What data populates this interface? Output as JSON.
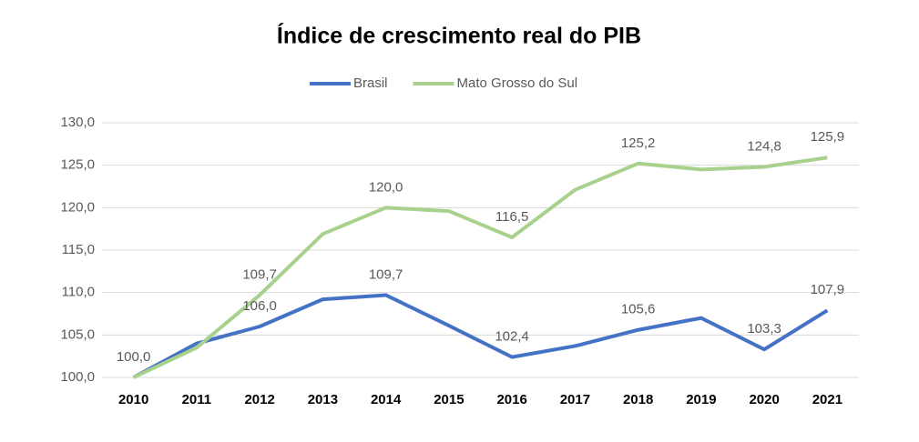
{
  "chart_data": {
    "type": "line",
    "title": "Índice de crescimento real do PIB",
    "categories": [
      "2010",
      "2011",
      "2012",
      "2013",
      "2014",
      "2015",
      "2016",
      "2017",
      "2018",
      "2019",
      "2020",
      "2021"
    ],
    "series": [
      {
        "name": "Brasil",
        "color": "#4472c4",
        "values": [
          100.0,
          104.0,
          106.0,
          109.2,
          109.7,
          106.1,
          102.4,
          103.7,
          105.6,
          107.0,
          103.3,
          107.9
        ],
        "value_labels": [
          "100,0",
          null,
          "106,0",
          null,
          "109,7",
          null,
          "102,4",
          null,
          "105,6",
          null,
          "103,3",
          "107,9"
        ]
      },
      {
        "name": "Mato Grosso do Sul",
        "color": "#a9d18e",
        "values": [
          100.0,
          103.5,
          109.7,
          116.9,
          120.0,
          119.6,
          116.5,
          122.1,
          125.2,
          124.5,
          124.8,
          125.9
        ],
        "value_labels": [
          null,
          null,
          "109,7",
          null,
          "120,0",
          null,
          "116,5",
          null,
          "125,2",
          null,
          "124,8",
          "125,9"
        ]
      }
    ],
    "ylim": [
      100,
      130
    ],
    "yticks": [
      {
        "value": 100,
        "label": "100,0"
      },
      {
        "value": 105,
        "label": "105,0"
      },
      {
        "value": 110,
        "label": "110,0"
      },
      {
        "value": 115,
        "label": "115,0"
      },
      {
        "value": 120,
        "label": "120,0"
      },
      {
        "value": 125,
        "label": "125,0"
      },
      {
        "value": 130,
        "label": "130,0"
      }
    ],
    "grid": true,
    "legend": "top"
  }
}
